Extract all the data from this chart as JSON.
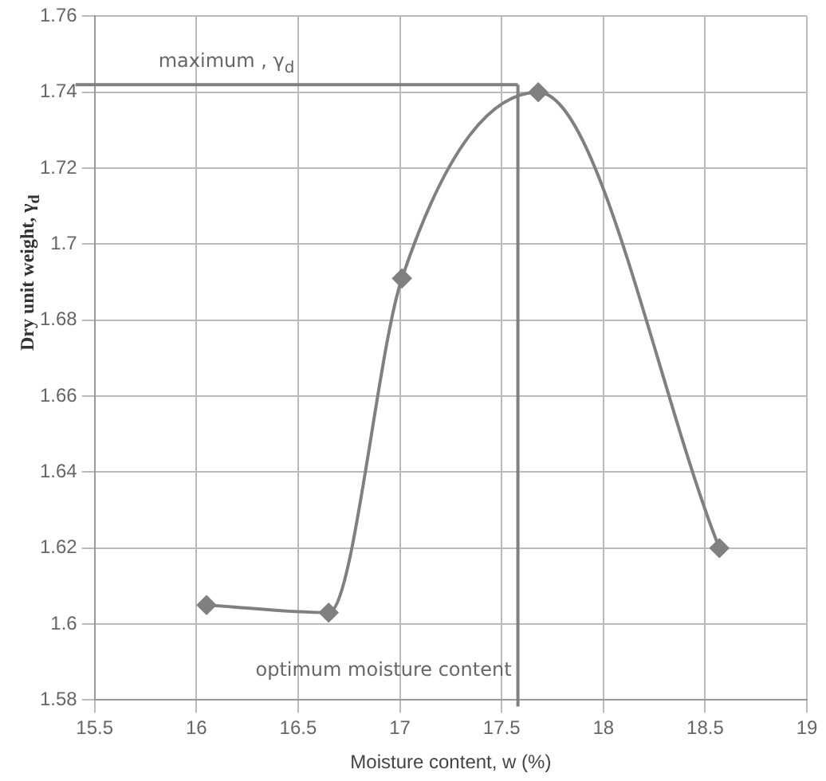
{
  "chart_data": {
    "type": "line",
    "xlabel": "Moisture content, w (%)",
    "ylabel": "Dry unit weight, γ$_{d}$",
    "x": [
      16.05,
      16.65,
      17.01,
      17.68,
      18.57
    ],
    "series": [
      {
        "color": "#808080",
        "values": [
          1.605,
          1.603,
          1.691,
          1.74,
          1.62
        ]
      }
    ],
    "xlim": [
      15.5,
      19
    ],
    "xticks": [
      15.5,
      16,
      16.5,
      17,
      17.5,
      18,
      18.5,
      19
    ],
    "ylim": [
      1.58,
      1.76
    ],
    "yticks": [
      1.58,
      1.6,
      1.62,
      1.64,
      1.66,
      1.68,
      1.7,
      1.72,
      1.74,
      1.76
    ],
    "ref_lines": [
      {
        "axis": "y",
        "value": 1.742,
        "label": "maximum , γ$_{d}$",
        "color": "#808080"
      },
      {
        "axis": "x",
        "value": 17.58,
        "label": "optimum moisture content",
        "color": "#808080"
      }
    ],
    "grid": true,
    "legend": false,
    "marker": "diamond",
    "line_style": "solid"
  }
}
